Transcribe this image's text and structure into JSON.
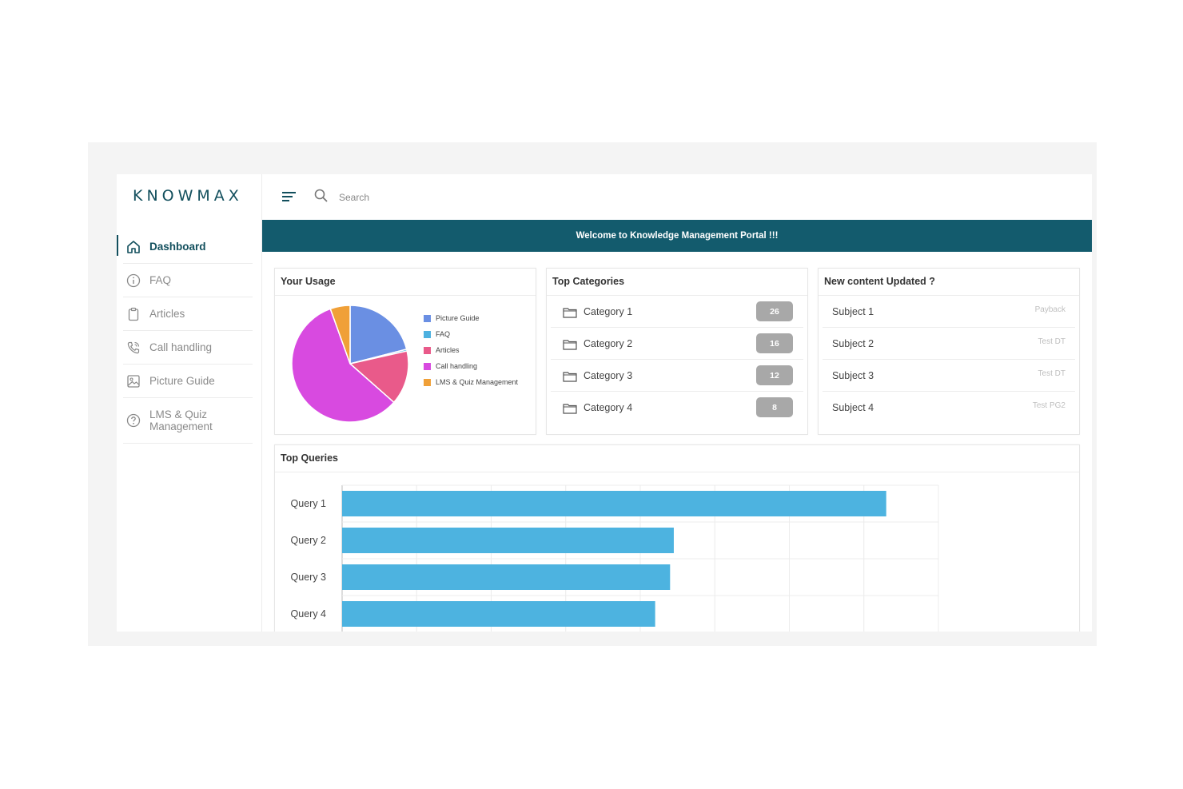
{
  "app": {
    "logo": "KNOWMAX",
    "banner": "Welcome to Knowledge Management Portal !!!"
  },
  "search": {
    "placeholder": "Search"
  },
  "sidebar": {
    "items": [
      {
        "label": "Dashboard",
        "icon": "home-icon",
        "active": true
      },
      {
        "label": "FAQ",
        "icon": "info-icon"
      },
      {
        "label": "Articles",
        "icon": "clipboard-icon"
      },
      {
        "label": "Call handling",
        "icon": "phone-icon"
      },
      {
        "label": "Picture Guide",
        "icon": "image-icon"
      },
      {
        "label": "LMS & Quiz Management",
        "icon": "help-icon"
      }
    ]
  },
  "usage": {
    "title": "Your Usage",
    "legend": [
      {
        "label": "Picture Guide",
        "color": "#6a8fe3",
        "value": 21
      },
      {
        "label": "FAQ",
        "color": "#4db1e0",
        "value": 0.5
      },
      {
        "label": "Articles",
        "color": "#e95a8a",
        "value": 15
      },
      {
        "label": "Call handling",
        "color": "#d84ae0",
        "value": 58
      },
      {
        "label": "LMS & Quiz Management",
        "color": "#f0a038",
        "value": 5.5
      }
    ]
  },
  "categories": {
    "title": "Top Categories",
    "items": [
      {
        "label": "Category 1",
        "count": "26"
      },
      {
        "label": "Category 2",
        "count": "16"
      },
      {
        "label": "Category 3",
        "count": "12"
      },
      {
        "label": "Category 4",
        "count": "8"
      }
    ]
  },
  "news": {
    "title": "New content Updated ?",
    "items": [
      {
        "label": "Subject 1",
        "tag": "Payback"
      },
      {
        "label": "Subject 2",
        "tag": "Test DT"
      },
      {
        "label": "Subject 3",
        "tag": "Test DT"
      },
      {
        "label": "Subject 4",
        "tag": "Test PG2"
      }
    ]
  },
  "queries": {
    "title": "Top Queries"
  },
  "chart_data": {
    "type": "bar",
    "orientation": "horizontal",
    "categories": [
      "Query 1",
      "Query 2",
      "Query 3",
      "Query 4"
    ],
    "values": [
      7.3,
      4.45,
      4.4,
      4.2
    ],
    "xlim": [
      0,
      8
    ],
    "grid": true,
    "color": "#4db3e0"
  }
}
